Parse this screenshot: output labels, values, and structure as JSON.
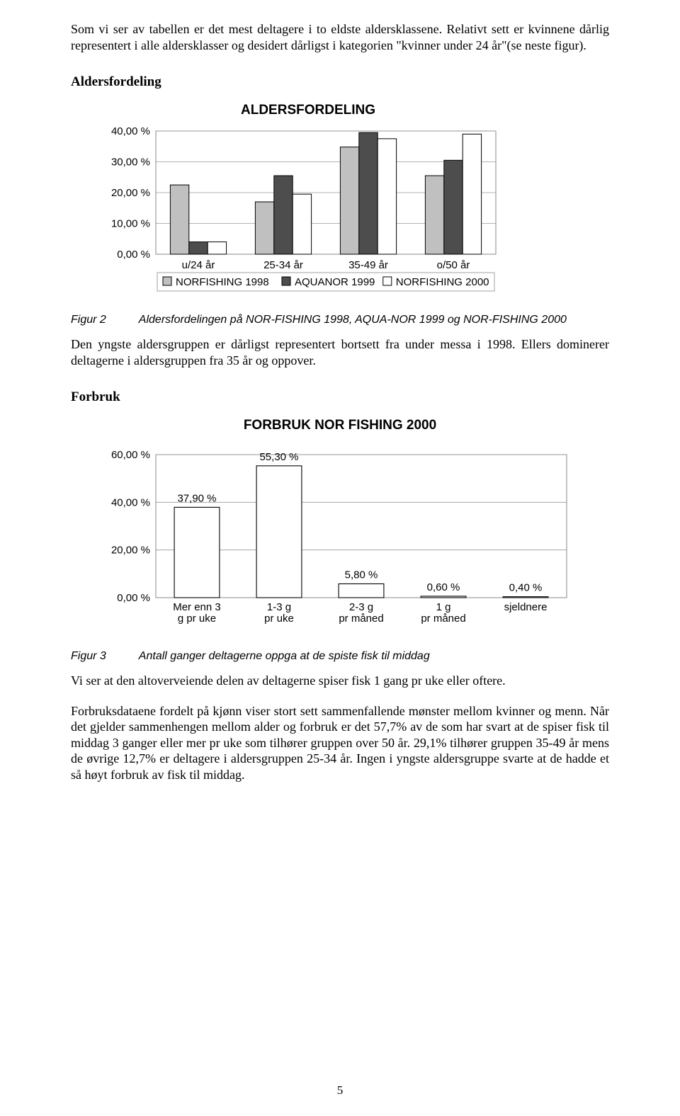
{
  "para_intro": "Som vi ser av tabellen er det mest deltagere i to eldste aldersklassene. Relativt sett er kvinnene dårlig representert i alle aldersklasser og desidert dårligst i kategorien \"kvinner under 24 år\"(se neste figur).",
  "section_aldersfordeling": "Aldersfordeling",
  "chart1": {
    "title": "ALDERSFORDELING",
    "categories": [
      "u/24 år",
      "25-34 år",
      "35-49 år",
      "o/50 år"
    ],
    "series": [
      {
        "name": "NORFISHING 1998",
        "values": [
          22.5,
          17.0,
          34.8,
          25.5
        ],
        "fill": "#c0c0c0",
        "stroke": "#000000"
      },
      {
        "name": "AQUANOR 1999",
        "values": [
          4.0,
          25.5,
          39.5,
          30.5
        ],
        "fill": "#4d4d4d",
        "stroke": "#000000"
      },
      {
        "name": "NORFISHING 2000",
        "values": [
          4.0,
          19.5,
          37.5,
          39.0
        ],
        "fill": "#ffffff",
        "stroke": "#000000"
      }
    ],
    "ylim": [
      0,
      40
    ],
    "yticks": [
      0,
      10,
      20,
      30,
      40
    ],
    "ytick_labels": [
      "0,00 %",
      "10,00 %",
      "20,00 %",
      "30,00 %",
      "40,00 %"
    ],
    "grid_color": "#9a9a9a",
    "border_color": "#8a8a8a",
    "font": "Arial, Helvetica, sans-serif",
    "axis_fontsize": 15,
    "legend_fontsize": 15,
    "plot_bg": "#ffffff"
  },
  "fig2_label": "Figur 2",
  "fig2_text": "Aldersfordelingen på NOR-FISHING 1998, AQUA-NOR 1999 og NOR-FISHING 2000",
  "para_after_fig2": "Den yngste aldersgruppen er dårligst representert bortsett fra under messa i 1998. Ellers dominerer deltagerne i aldersgruppen fra 35 år og oppover.",
  "section_forbruk": "Forbruk",
  "chart2": {
    "title": "FORBRUK NOR FISHING 2000",
    "categories": [
      "Mer enn 3 g pr uke",
      "1-3 g pr uke",
      "2-3 g pr måned",
      "1 g pr måned",
      "sjeldnere"
    ],
    "values": [
      37.9,
      55.3,
      5.8,
      0.6,
      0.4
    ],
    "value_labels": [
      "37,90 %",
      "55,30 %",
      "5,80 %",
      "0,60 %",
      "0,40 %"
    ],
    "bar_fill": "#ffffff",
    "bar_stroke": "#000000",
    "ylim": [
      0,
      60
    ],
    "yticks": [
      0,
      20,
      40,
      60
    ],
    "ytick_labels": [
      "0,00 %",
      "20,00 %",
      "40,00 %",
      "60,00 %"
    ],
    "grid_color": "#9a9a9a",
    "border_color": "#8a8a8a",
    "font": "Arial, Helvetica, sans-serif",
    "axis_fontsize": 15,
    "plot_bg": "#ffffff"
  },
  "fig3_label": "Figur 3",
  "fig3_text": "Antall ganger deltagerne oppga at de spiste fisk til middag",
  "para_after_fig3_a": "Vi ser at den altoverveiende delen av deltagerne spiser fisk 1 gang pr uke eller oftere.",
  "para_after_fig3_b": "Forbruksdataene fordelt på kjønn viser stort sett sammenfallende mønster mellom kvinner og menn. Når det gjelder sammenhengen mellom alder og forbruk er det 57,7% av de som har svart at de spiser fisk til middag 3 ganger eller mer pr uke som tilhører gruppen over 50 år. 29,1% tilhører gruppen 35-49 år mens de øvrige 12,7% er deltagere i aldersgruppen 25-34 år. Ingen i yngste aldersgruppe svarte at de hadde et så høyt forbruk av fisk til middag.",
  "page_number": "5"
}
